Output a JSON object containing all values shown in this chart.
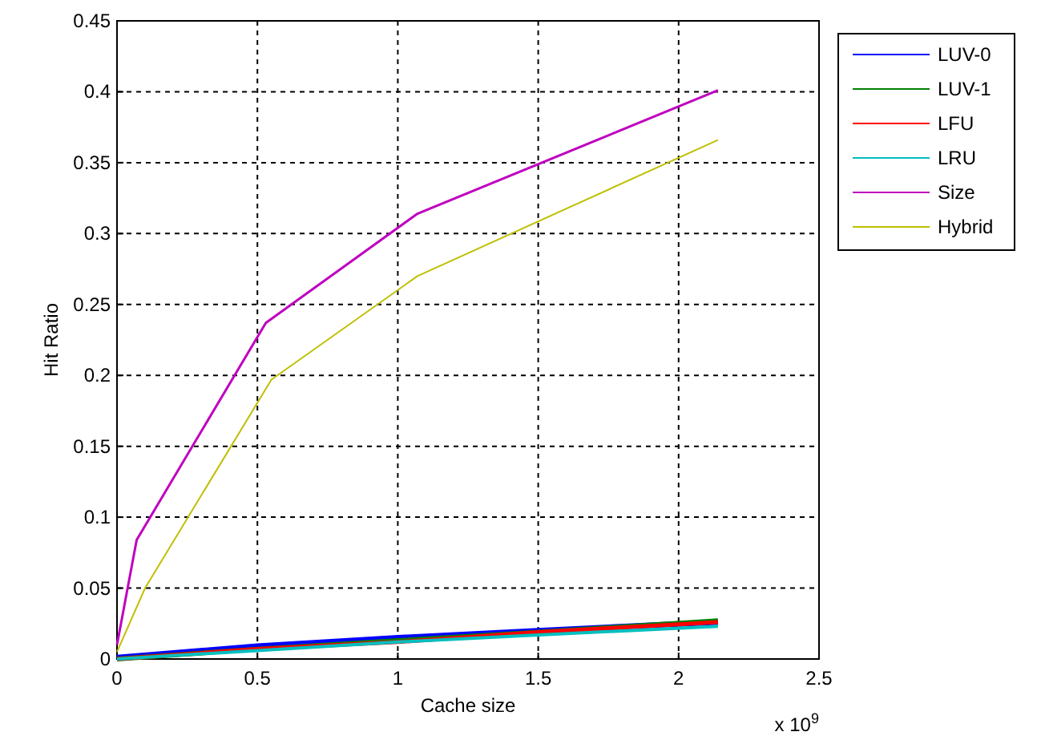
{
  "chart_data": {
    "type": "line",
    "xlabel": "Cache size",
    "ylabel": "Hit Ratio",
    "annotations": [
      "x 10$^{9}$"
    ],
    "xlim": [
      0,
      2.5
    ],
    "xticks": [
      0,
      0.5,
      1,
      1.5,
      2,
      2.5
    ],
    "ylim": [
      0,
      0.45
    ],
    "yticks": [
      0,
      0.05,
      0.1,
      0.15,
      0.2,
      0.25,
      0.3,
      0.35,
      0.4,
      0.45
    ],
    "grid": true,
    "legend": "top right",
    "line_style": "solid",
    "marker": "none",
    "series": [
      {
        "name": "LUV-0",
        "color": "#0000ff",
        "x": [
          0,
          0.5,
          1,
          1.5,
          2.14
        ],
        "values": [
          0.001,
          0.009,
          0.015,
          0.02,
          0.026
        ]
      },
      {
        "name": "LUV-1",
        "color": "#008000",
        "x": [
          0,
          0.5,
          1,
          1.5,
          2.14
        ],
        "values": [
          0,
          0.007,
          0.013,
          0.019,
          0.027
        ]
      },
      {
        "name": "LFU",
        "color": "#ff0000",
        "x": [
          0,
          0.5,
          1,
          1.5,
          2.14
        ],
        "values": [
          0,
          0.007,
          0.012,
          0.019,
          0.026
        ]
      },
      {
        "name": "LRU",
        "color": "#00bfbf",
        "x": [
          0,
          0.5,
          1,
          1.5,
          2.14
        ],
        "values": [
          0,
          0.006,
          0.012,
          0.017,
          0.023
        ]
      },
      {
        "name": "Size",
        "color": "#bf00bf",
        "x": [
          0,
          0.07,
          0.53,
          1.07,
          2.14
        ],
        "values": [
          0.01,
          0.084,
          0.237,
          0.314,
          0.401
        ]
      },
      {
        "name": "Hybrid",
        "color": "#bfbf00",
        "x": [
          0,
          0.1,
          0.55,
          1.07,
          2.14
        ],
        "values": [
          0.005,
          0.05,
          0.197,
          0.27,
          0.366
        ]
      }
    ]
  }
}
